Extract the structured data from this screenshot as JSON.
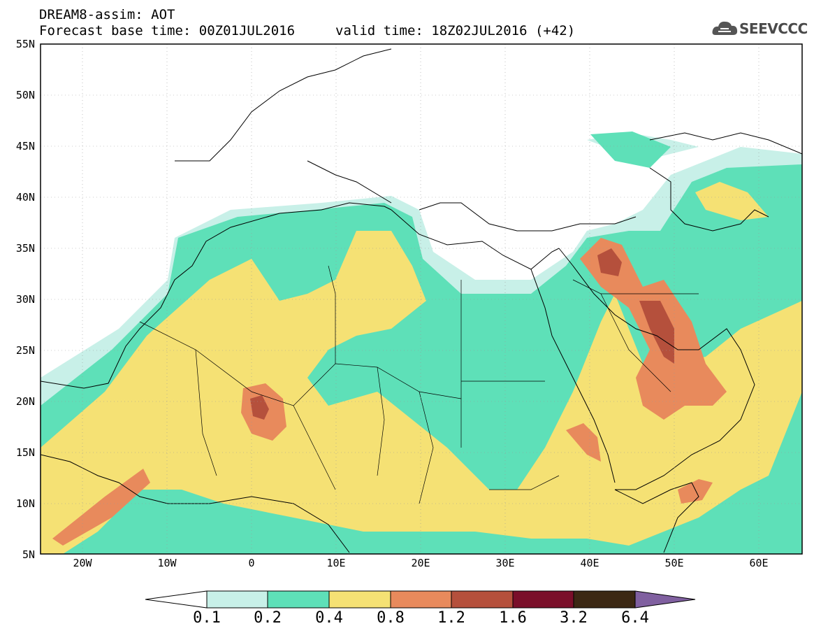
{
  "header": {
    "title_line1": "DREAM8-assim: AOT",
    "title_line2": "Forecast base time: 00Z01JUL2016",
    "valid_time": "valid time: 18Z02JUL2016 (+42)",
    "logo_text": "SEEVCCC"
  },
  "map": {
    "projection": "lat-lon",
    "lon_range": [
      -25,
      65
    ],
    "lat_range": [
      5,
      55
    ],
    "grid": true,
    "lat_labels": [
      "55N",
      "50N",
      "45N",
      "40N",
      "35N",
      "30N",
      "25N",
      "20N",
      "15N",
      "10N",
      "5N"
    ],
    "lon_labels": [
      "20W",
      "10W",
      "0",
      "10E",
      "20E",
      "30E",
      "40E",
      "50E",
      "60E"
    ]
  },
  "colorbar": {
    "levels": [
      "0.1",
      "0.2",
      "0.4",
      "0.8",
      "1.2",
      "1.6",
      "3.2",
      "6.4"
    ],
    "colors": [
      "#ffffff",
      "#c8f0e8",
      "#5ee0b8",
      "#f5e174",
      "#e88a5c",
      "#b5503c",
      "#7a0f2a",
      "#3c2814",
      "#8060a0"
    ]
  },
  "colors": {
    "c01": "#c8f0e8",
    "c02": "#5ee0b8",
    "c04": "#f5e174",
    "c08": "#e88a5c",
    "c12": "#b5503c"
  }
}
